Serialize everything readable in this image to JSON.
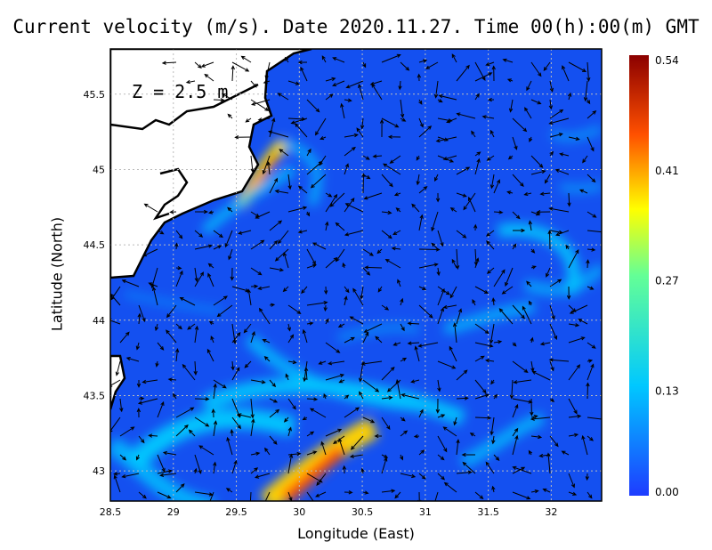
{
  "title": "Current velocity (m/s). Date 2020.11.27. Time 00(h):00(m) GMT",
  "depth_label": "Z = 2.5 m",
  "axes": {
    "xlabel": "Longitude (East)",
    "ylabel": "Latitude (North)",
    "x_ticks": [
      "28.5",
      "29",
      "29.5",
      "30",
      "30.5",
      "31",
      "31.5",
      "32"
    ],
    "y_ticks": [
      "45.5",
      "45",
      "44.5",
      "44",
      "43.5",
      "43"
    ],
    "xlim": [
      28.5,
      32.4
    ],
    "ylim": [
      42.8,
      45.8
    ]
  },
  "colorbar": {
    "ticks": [
      "0.54",
      "0.41",
      "0.27",
      "0.13",
      "0.00"
    ],
    "range": [
      0,
      0.54
    ],
    "colors": [
      "#1e3cff",
      "#00c8ff",
      "#c8ff32",
      "#ffdc00",
      "#ff3c00",
      "#8b0000"
    ]
  },
  "map": {
    "region": "Western Black Sea",
    "water_color": "#1450f0",
    "land_color": "#ffffff",
    "coast_color": "#000000",
    "grid": true
  }
}
